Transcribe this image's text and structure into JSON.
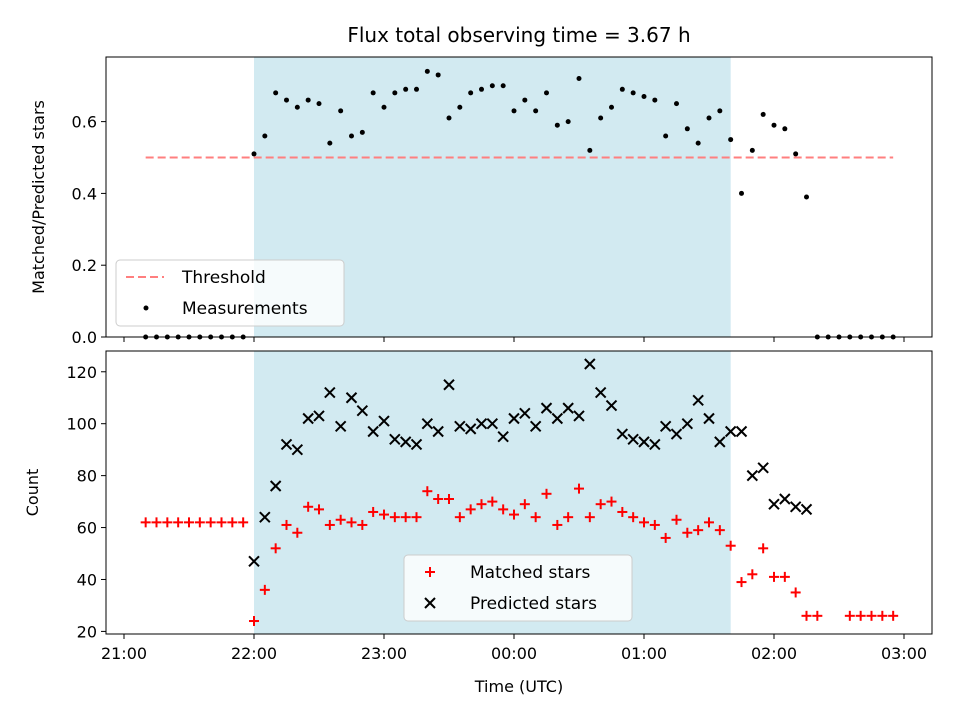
{
  "chart_data": [
    {
      "type": "scatter",
      "title": "Flux total observing time = 3.67 h",
      "xlabel": "",
      "ylabel": "Matched/Predicted stars",
      "xlim": [
        "21:00",
        "03:00"
      ],
      "ylim": [
        0,
        0.78
      ],
      "x_ticks": [
        "21:00",
        "22:00",
        "23:00",
        "00:00",
        "01:00",
        "02:00",
        "03:00"
      ],
      "y_ticks": [
        "0.0",
        "0.2",
        "0.4",
        "0.6"
      ],
      "y_tick_values": [
        0,
        0.2,
        0.4,
        0.6
      ],
      "shaded_region": {
        "start": "22:00",
        "end": "01:40",
        "color": "#add8e6"
      },
      "legend": {
        "position": "lower-left"
      },
      "series": [
        {
          "name": "Threshold",
          "style": "dashed-line",
          "color": "#ff7f7f",
          "x": [
            "21:10",
            "02:55"
          ],
          "y": [
            0.5,
            0.5
          ]
        },
        {
          "name": "Measurements",
          "style": "dots",
          "color": "#000000",
          "x": [
            "21:10",
            "21:15",
            "21:20",
            "21:25",
            "21:30",
            "21:35",
            "21:40",
            "21:45",
            "21:50",
            "21:55",
            "22:00",
            "22:05",
            "22:10",
            "22:15",
            "22:20",
            "22:25",
            "22:30",
            "22:35",
            "22:40",
            "22:45",
            "22:50",
            "22:55",
            "23:00",
            "23:05",
            "23:10",
            "23:15",
            "23:20",
            "23:25",
            "23:30",
            "23:35",
            "23:40",
            "23:45",
            "23:50",
            "23:55",
            "00:00",
            "00:05",
            "00:10",
            "00:15",
            "00:20",
            "00:25",
            "00:30",
            "00:35",
            "00:40",
            "00:45",
            "00:50",
            "00:55",
            "01:00",
            "01:05",
            "01:10",
            "01:15",
            "01:20",
            "01:25",
            "01:30",
            "01:35",
            "01:40",
            "01:45",
            "01:50",
            "01:55",
            "02:00",
            "02:05",
            "02:10",
            "02:15",
            "02:20",
            "02:25",
            "02:30",
            "02:35",
            "02:40",
            "02:45",
            "02:50",
            "02:55"
          ],
          "y": [
            0,
            0,
            0,
            0,
            0,
            0,
            0,
            0,
            0,
            0,
            0.51,
            0.56,
            0.68,
            0.66,
            0.64,
            0.66,
            0.65,
            0.54,
            0.63,
            0.56,
            0.57,
            0.68,
            0.64,
            0.68,
            0.69,
            0.69,
            0.74,
            0.73,
            0.61,
            0.64,
            0.68,
            0.69,
            0.7,
            0.7,
            0.63,
            0.66,
            0.63,
            0.68,
            0.59,
            0.6,
            0.72,
            0.52,
            0.61,
            0.64,
            0.69,
            0.68,
            0.67,
            0.66,
            0.56,
            0.65,
            0.58,
            0.54,
            0.61,
            0.63,
            0.55,
            0.4,
            0.52,
            0.62,
            0.59,
            0.58,
            0.51,
            0.39,
            0,
            0,
            0,
            0,
            0,
            0,
            0,
            0
          ]
        }
      ]
    },
    {
      "type": "scatter",
      "title": "",
      "xlabel": "Time (UTC)",
      "ylabel": "Count",
      "xlim": [
        "21:00",
        "03:00"
      ],
      "ylim": [
        19,
        128
      ],
      "x_ticks": [
        "21:00",
        "22:00",
        "23:00",
        "00:00",
        "01:00",
        "02:00",
        "03:00"
      ],
      "y_ticks": [
        "20",
        "40",
        "60",
        "80",
        "100",
        "120"
      ],
      "y_tick_values": [
        20,
        40,
        60,
        80,
        100,
        120
      ],
      "shaded_region": {
        "start": "22:00",
        "end": "01:40",
        "color": "#add8e6"
      },
      "legend": {
        "position": "lower-center"
      },
      "series": [
        {
          "name": "Matched stars",
          "style": "plus",
          "color": "#ff0000",
          "x": [
            "21:10",
            "21:15",
            "21:20",
            "21:25",
            "21:30",
            "21:35",
            "21:40",
            "21:45",
            "21:50",
            "21:55",
            "22:00",
            "22:05",
            "22:10",
            "22:15",
            "22:20",
            "22:25",
            "22:30",
            "22:35",
            "22:40",
            "22:45",
            "22:50",
            "22:55",
            "23:00",
            "23:05",
            "23:10",
            "23:15",
            "23:20",
            "23:25",
            "23:30",
            "23:35",
            "23:40",
            "23:45",
            "23:50",
            "23:55",
            "00:00",
            "00:05",
            "00:10",
            "00:15",
            "00:20",
            "00:25",
            "00:30",
            "00:35",
            "00:40",
            "00:45",
            "00:50",
            "00:55",
            "01:00",
            "01:05",
            "01:10",
            "01:15",
            "01:20",
            "01:25",
            "01:30",
            "01:35",
            "01:40",
            "01:45",
            "01:50",
            "01:55",
            "02:00",
            "02:05",
            "02:10",
            "02:15",
            "02:20",
            "02:35",
            "02:40",
            "02:45",
            "02:50",
            "02:55"
          ],
          "y": [
            62,
            62,
            62,
            62,
            62,
            62,
            62,
            62,
            62,
            62,
            24,
            36,
            52,
            61,
            58,
            68,
            67,
            61,
            63,
            62,
            61,
            66,
            65,
            64,
            64,
            64,
            74,
            71,
            71,
            64,
            67,
            69,
            70,
            67,
            65,
            69,
            64,
            73,
            61,
            64,
            75,
            64,
            69,
            70,
            66,
            64,
            62,
            61,
            56,
            63,
            58,
            59,
            62,
            59,
            53,
            39,
            42,
            52,
            41,
            41,
            35,
            26,
            26,
            26,
            26,
            26,
            26,
            26
          ]
        },
        {
          "name": "Predicted stars",
          "style": "x",
          "color": "#000000",
          "x": [
            "22:00",
            "22:05",
            "22:10",
            "22:15",
            "22:20",
            "22:25",
            "22:30",
            "22:35",
            "22:40",
            "22:45",
            "22:50",
            "22:55",
            "23:00",
            "23:05",
            "23:10",
            "23:15",
            "23:20",
            "23:25",
            "23:30",
            "23:35",
            "23:40",
            "23:45",
            "23:50",
            "23:55",
            "00:00",
            "00:05",
            "00:10",
            "00:15",
            "00:20",
            "00:25",
            "00:30",
            "00:35",
            "00:40",
            "00:45",
            "00:50",
            "00:55",
            "01:00",
            "01:05",
            "01:10",
            "01:15",
            "01:20",
            "01:25",
            "01:30",
            "01:35",
            "01:40",
            "01:45",
            "01:50",
            "01:55",
            "02:00",
            "02:05",
            "02:10",
            "02:15"
          ],
          "y": [
            47,
            64,
            76,
            92,
            90,
            102,
            103,
            112,
            99,
            110,
            105,
            97,
            101,
            94,
            93,
            92,
            100,
            97,
            115,
            99,
            98,
            100,
            100,
            95,
            102,
            104,
            99,
            106,
            102,
            106,
            103,
            123,
            112,
            107,
            96,
            94,
            93,
            92,
            99,
            96,
            100,
            109,
            102,
            93,
            97,
            97,
            80,
            83,
            69,
            71,
            68,
            67
          ]
        }
      ]
    }
  ]
}
